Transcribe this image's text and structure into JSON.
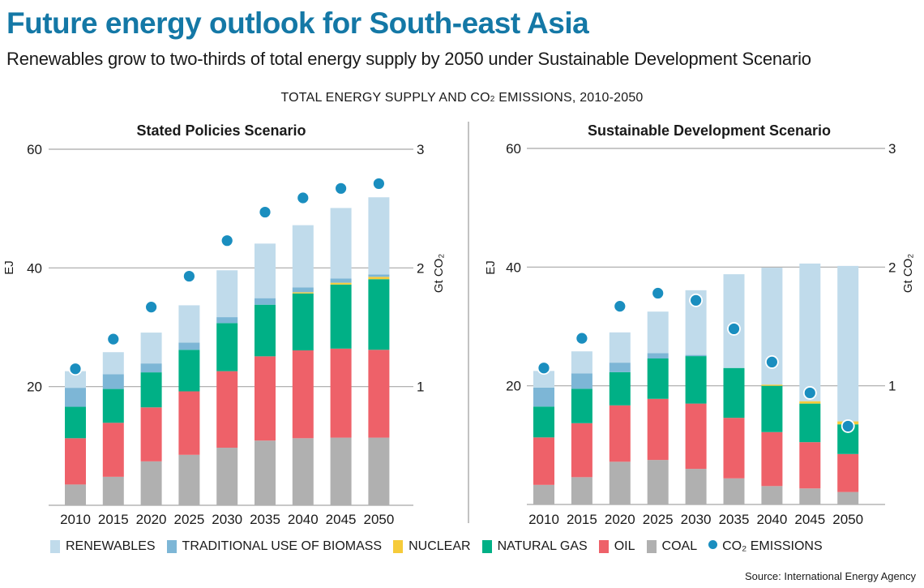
{
  "header": {
    "title": "Future energy outlook for South-east Asia",
    "subtitle": "Renewables grow to two-thirds of total energy supply by 2050 under Sustainable Development Scenario",
    "chart_title_main": "TOTAL ENERGY SUPPLY AND CO",
    "chart_title_sub": "2",
    "chart_title_rest": " EMISSIONS, 2010-2050"
  },
  "source": "Source: International Energy Agency",
  "colors": {
    "renewables": "#c0dbeb",
    "biomass": "#7db6d6",
    "nuclear": "#f6cb3a",
    "natural_gas": "#00b086",
    "oil": "#ee6169",
    "coal": "#b0b0b0",
    "co2": "#1a8ebf",
    "title": "#1478a6"
  },
  "legend": [
    {
      "key": "renewables",
      "label": "RENEWABLES",
      "shape": "square"
    },
    {
      "key": "biomass",
      "label": "TRADITIONAL USE OF BIOMASS",
      "shape": "square"
    },
    {
      "key": "nuclear",
      "label": "NUCLEAR",
      "shape": "square"
    },
    {
      "key": "natural_gas",
      "label": "NATURAL GAS",
      "shape": "square"
    },
    {
      "key": "oil",
      "label": "OIL",
      "shape": "square"
    },
    {
      "key": "coal",
      "label": "COAL",
      "shape": "square"
    },
    {
      "key": "co2",
      "label": "CO₂ EMISSIONS",
      "shape": "circle"
    }
  ],
  "chart_data": [
    {
      "type": "bar",
      "stacked": true,
      "title": "Stated Policies Scenario",
      "categories": [
        "2010",
        "2015",
        "2020",
        "2025",
        "2030",
        "2035",
        "2040",
        "2045",
        "2050"
      ],
      "ylabel": "EJ",
      "ylim": [
        0,
        60
      ],
      "yticks": [
        20,
        40,
        60
      ],
      "y2label": "Gt CO₂",
      "y2lim": [
        0,
        3
      ],
      "y2ticks": [
        1,
        2,
        3
      ],
      "grid": true,
      "series": [
        {
          "name": "COAL",
          "key": "coal",
          "values": [
            3.5,
            4.8,
            7.4,
            8.5,
            9.7,
            10.9,
            11.3,
            11.4,
            11.4
          ]
        },
        {
          "name": "OIL",
          "key": "oil",
          "values": [
            7.8,
            9.1,
            9.1,
            10.7,
            12.9,
            14.2,
            14.8,
            15.0,
            14.8
          ]
        },
        {
          "name": "NATURAL GAS",
          "key": "natural_gas",
          "values": [
            5.3,
            5.7,
            5.9,
            7.0,
            8.1,
            8.7,
            9.6,
            10.8,
            11.9
          ]
        },
        {
          "name": "NUCLEAR",
          "key": "nuclear",
          "values": [
            0,
            0,
            0,
            0,
            0,
            0,
            0.2,
            0.3,
            0.4
          ]
        },
        {
          "name": "TRADITIONAL USE OF BIOMASS",
          "key": "biomass",
          "values": [
            3.2,
            2.5,
            1.5,
            1.2,
            1.0,
            1.1,
            0.8,
            0.7,
            0.4
          ]
        },
        {
          "name": "RENEWABLES",
          "key": "renewables",
          "values": [
            2.8,
            3.7,
            5.2,
            6.3,
            7.9,
            9.2,
            10.5,
            11.9,
            13.0
          ]
        }
      ],
      "line_series": {
        "name": "CO₂ EMISSIONS",
        "key": "co2",
        "axis": "y2",
        "values": [
          1.15,
          1.4,
          1.67,
          1.93,
          2.23,
          2.47,
          2.59,
          2.67,
          2.71
        ]
      }
    },
    {
      "type": "bar",
      "stacked": true,
      "title": "Sustainable Development Scenario",
      "categories": [
        "2010",
        "2015",
        "2020",
        "2025",
        "2030",
        "2035",
        "2040",
        "2045",
        "2050"
      ],
      "ylabel": "EJ",
      "ylim": [
        0,
        60
      ],
      "yticks": [
        20,
        40,
        60
      ],
      "y2label": "Gt CO₂",
      "y2lim": [
        0,
        3
      ],
      "y2ticks": [
        1,
        2,
        3
      ],
      "grid": true,
      "series": [
        {
          "name": "COAL",
          "key": "coal",
          "values": [
            3.3,
            4.6,
            7.2,
            7.5,
            6.0,
            4.4,
            3.1,
            2.7,
            2.1
          ]
        },
        {
          "name": "OIL",
          "key": "oil",
          "values": [
            8.0,
            9.1,
            9.5,
            10.3,
            11.0,
            10.2,
            9.1,
            7.8,
            6.4
          ]
        },
        {
          "name": "NATURAL GAS",
          "key": "natural_gas",
          "values": [
            5.2,
            5.8,
            5.6,
            6.8,
            8.0,
            8.4,
            7.8,
            6.5,
            5.0
          ]
        },
        {
          "name": "NUCLEAR",
          "key": "nuclear",
          "values": [
            0,
            0,
            0,
            0,
            0,
            0,
            0.2,
            0.4,
            0.5
          ]
        },
        {
          "name": "TRADITIONAL USE OF BIOMASS",
          "key": "biomass",
          "values": [
            3.2,
            2.6,
            1.6,
            0.9,
            0.2,
            0,
            0,
            0,
            0
          ]
        },
        {
          "name": "RENEWABLES",
          "key": "renewables",
          "values": [
            2.8,
            3.7,
            5.1,
            7.0,
            10.9,
            15.8,
            19.7,
            23.2,
            26.2
          ]
        }
      ],
      "line_series": {
        "name": "CO₂ EMISSIONS",
        "key": "co2",
        "axis": "y2",
        "values": [
          1.15,
          1.4,
          1.67,
          1.78,
          1.72,
          1.48,
          1.2,
          0.94,
          0.66
        ]
      }
    }
  ]
}
